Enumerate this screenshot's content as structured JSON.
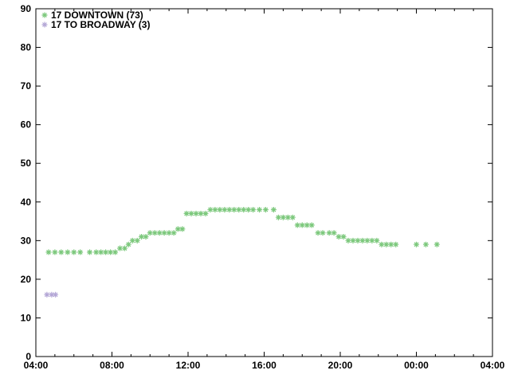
{
  "chart_data": {
    "type": "scatter",
    "title": "",
    "xlabel": "",
    "ylabel": "",
    "marker": "asterisk",
    "grid": false,
    "legend_position": "top-left-inside",
    "x_axis": {
      "unit": "time-of-day",
      "range_hours": [
        4,
        28
      ],
      "major_tick_every_hours": 4,
      "minor_tick_every_hours": 1,
      "tick_labels": [
        "04:00",
        "08:00",
        "12:00",
        "16:00",
        "20:00",
        "00:00",
        "04:00"
      ]
    },
    "y_axis": {
      "range": [
        0,
        90
      ],
      "major_tick_every": 10,
      "tick_labels_top_to_bottom": [
        "90",
        "80",
        "70",
        "60",
        "50",
        "40",
        "30",
        "20",
        "10",
        "0"
      ]
    },
    "series": [
      {
        "name": "17 DOWNTOWN (73)",
        "color": "#7cc87c",
        "point_count": 73,
        "points_time_value": [
          [
            4.67,
            27
          ],
          [
            5.0,
            27
          ],
          [
            5.33,
            27
          ],
          [
            5.67,
            27
          ],
          [
            6.0,
            27
          ],
          [
            6.33,
            27
          ],
          [
            6.83,
            27
          ],
          [
            7.17,
            27
          ],
          [
            7.42,
            27
          ],
          [
            7.67,
            27
          ],
          [
            7.92,
            27
          ],
          [
            8.17,
            27
          ],
          [
            8.42,
            28
          ],
          [
            8.67,
            28
          ],
          [
            8.87,
            29
          ],
          [
            9.08,
            30
          ],
          [
            9.33,
            30
          ],
          [
            9.55,
            31
          ],
          [
            9.78,
            31
          ],
          [
            10.0,
            32
          ],
          [
            10.25,
            32
          ],
          [
            10.5,
            32
          ],
          [
            10.75,
            32
          ],
          [
            11.0,
            32
          ],
          [
            11.25,
            32
          ],
          [
            11.47,
            33
          ],
          [
            11.7,
            33
          ],
          [
            11.92,
            37
          ],
          [
            12.17,
            37
          ],
          [
            12.42,
            37
          ],
          [
            12.67,
            37
          ],
          [
            12.92,
            37
          ],
          [
            13.17,
            38
          ],
          [
            13.42,
            38
          ],
          [
            13.67,
            38
          ],
          [
            13.92,
            38
          ],
          [
            14.17,
            38
          ],
          [
            14.42,
            38
          ],
          [
            14.67,
            38
          ],
          [
            14.92,
            38
          ],
          [
            15.17,
            38
          ],
          [
            15.42,
            38
          ],
          [
            15.75,
            38
          ],
          [
            16.08,
            38
          ],
          [
            16.5,
            38
          ],
          [
            16.75,
            36
          ],
          [
            17.0,
            36
          ],
          [
            17.25,
            36
          ],
          [
            17.5,
            36
          ],
          [
            17.75,
            34
          ],
          [
            18.0,
            34
          ],
          [
            18.25,
            34
          ],
          [
            18.5,
            34
          ],
          [
            18.83,
            32
          ],
          [
            19.08,
            32
          ],
          [
            19.42,
            32
          ],
          [
            19.67,
            32
          ],
          [
            19.92,
            31
          ],
          [
            20.17,
            31
          ],
          [
            20.42,
            30
          ],
          [
            20.67,
            30
          ],
          [
            20.92,
            30
          ],
          [
            21.17,
            30
          ],
          [
            21.42,
            30
          ],
          [
            21.67,
            30
          ],
          [
            21.92,
            30
          ],
          [
            22.17,
            29
          ],
          [
            22.42,
            29
          ],
          [
            22.67,
            29
          ],
          [
            22.92,
            29
          ],
          [
            24.0,
            29
          ],
          [
            24.5,
            29
          ],
          [
            25.08,
            29
          ]
        ]
      },
      {
        "name": "17 TO BROADWAY (3)",
        "color": "#b4a7d6",
        "point_count": 3,
        "points_time_value": [
          [
            4.58,
            16
          ],
          [
            4.83,
            16
          ],
          [
            5.03,
            16
          ]
        ]
      }
    ]
  }
}
